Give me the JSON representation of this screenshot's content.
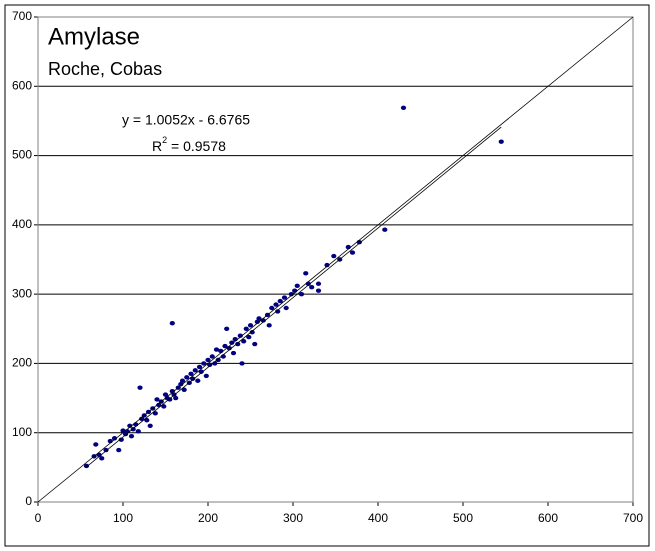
{
  "chart_data": {
    "type": "scatter",
    "title": "Amylase",
    "subtitle": "Roche, Cobas",
    "annotations": {
      "equation": "y = 1.0052x - 6.6765",
      "r2": [
        "R",
        "2",
        " = 0.9578"
      ]
    },
    "xlim": [
      0,
      700
    ],
    "ylim": [
      0,
      700
    ],
    "xticks": [
      0,
      100,
      200,
      300,
      400,
      500,
      600,
      700
    ],
    "yticks": [
      0,
      100,
      200,
      300,
      400,
      500,
      600,
      700
    ],
    "grid": true,
    "series": [
      {
        "color": "#000080",
        "x": [
          57,
          66,
          68,
          72,
          75,
          80,
          85,
          90,
          95,
          98,
          100,
          103,
          105,
          108,
          110,
          112,
          115,
          118,
          120,
          122,
          125,
          128,
          130,
          132,
          135,
          138,
          140,
          142,
          145,
          148,
          150,
          152,
          155,
          158,
          158,
          160,
          162,
          165,
          168,
          170,
          172,
          175,
          178,
          180,
          182,
          185,
          188,
          190,
          192,
          195,
          198,
          200,
          202,
          205,
          208,
          210,
          212,
          215,
          218,
          220,
          222,
          225,
          228,
          230,
          232,
          235,
          238,
          240,
          242,
          245,
          248,
          250,
          252,
          255,
          258,
          260,
          265,
          270,
          272,
          275,
          280,
          282,
          285,
          290,
          292,
          298,
          302,
          305,
          310,
          315,
          318,
          322,
          330,
          330,
          340,
          348,
          355,
          365,
          370,
          378,
          408,
          430,
          545
        ],
        "values": [
          52,
          66,
          83,
          68,
          63,
          75,
          88,
          92,
          75,
          90,
          103,
          98,
          102,
          110,
          95,
          105,
          112,
          102,
          165,
          120,
          125,
          118,
          130,
          110,
          135,
          128,
          148,
          140,
          145,
          138,
          155,
          150,
          148,
          160,
          258,
          155,
          150,
          165,
          170,
          175,
          162,
          180,
          172,
          185,
          178,
          190,
          175,
          195,
          188,
          200,
          182,
          205,
          198,
          210,
          200,
          220,
          205,
          218,
          210,
          225,
          250,
          222,
          230,
          215,
          235,
          228,
          240,
          200,
          232,
          250,
          238,
          255,
          245,
          228,
          260,
          265,
          262,
          270,
          255,
          280,
          285,
          275,
          290,
          295,
          280,
          300,
          305,
          312,
          300,
          330,
          315,
          310,
          315,
          305,
          342,
          355,
          350,
          368,
          360,
          375,
          393,
          569,
          520
        ]
      },
      {
        "type": "line",
        "color": "#000000",
        "x": [
          0,
          700
        ],
        "values": [
          0,
          700
        ]
      },
      {
        "type": "line",
        "color": "#000000",
        "x": [
          57,
          545
        ],
        "values": [
          50.62,
          541.16
        ]
      }
    ]
  }
}
